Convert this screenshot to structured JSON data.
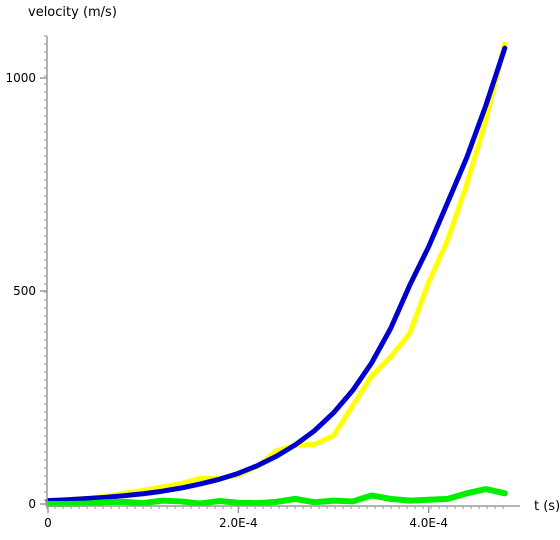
{
  "chart_data": {
    "type": "line",
    "title": "",
    "xlabel": "t (s)",
    "ylabel": "velocity (m/s)",
    "xlim": [
      0,
      0.00048
    ],
    "ylim": [
      0,
      1000
    ],
    "x_ticks": [
      0,
      0.0002,
      0.0004
    ],
    "x_tick_labels": [
      "0",
      "2.0E-4",
      "4.0E-4"
    ],
    "y_ticks": [
      0,
      500,
      1000
    ],
    "y_tick_labels": [
      "0",
      "500",
      "1000"
    ],
    "grid": false,
    "series": [
      {
        "color": "#ffff00",
        "x": [
          0,
          2e-05,
          4e-05,
          6e-05,
          8e-05,
          0.0001,
          0.00012,
          0.00014,
          0.00016,
          0.00018,
          0.0002,
          0.00022,
          0.00024,
          0.00026,
          0.00028,
          0.0003,
          0.00032,
          0.00034,
          0.00036,
          0.00038,
          0.0004,
          0.00042,
          0.00044,
          0.00046,
          0.00048
        ],
        "values": [
          8,
          10,
          13,
          18,
          25,
          32,
          40,
          48,
          60,
          60,
          68,
          88,
          125,
          138,
          140,
          160,
          230,
          300,
          345,
          400,
          520,
          620,
          750,
          900,
          1080
        ]
      },
      {
        "color": "#0000cc",
        "x": [
          0,
          2e-05,
          4e-05,
          6e-05,
          8e-05,
          0.0001,
          0.00012,
          0.00014,
          0.00016,
          0.00018,
          0.0002,
          0.00022,
          0.00024,
          0.00026,
          0.00028,
          0.0003,
          0.00032,
          0.00034,
          0.00036,
          0.00038,
          0.0004,
          0.00042,
          0.00044,
          0.00046,
          0.00048
        ],
        "values": [
          8,
          10,
          12.5,
          15.5,
          19.5,
          24,
          30,
          37.5,
          47,
          58,
          72,
          90,
          112,
          139,
          172,
          214,
          266,
          331,
          412,
          513,
          604,
          708,
          813,
          935,
          1070
        ]
      },
      {
        "color": "#00ee00",
        "x": [
          0,
          2e-05,
          4e-05,
          6e-05,
          8e-05,
          0.0001,
          0.00012,
          0.00014,
          0.00016,
          0.00018,
          0.0002,
          0.00022,
          0.00024,
          0.00026,
          0.00028,
          0.0003,
          0.00032,
          0.00034,
          0.00036,
          0.00038,
          0.0004,
          0.00042,
          0.00044,
          0.00046,
          0.00048
        ],
        "values": [
          0,
          0,
          1,
          4,
          5,
          2,
          8,
          6,
          1,
          7,
          3,
          2,
          5,
          12,
          4,
          8,
          6,
          20,
          12,
          8,
          10,
          12,
          25,
          35,
          25
        ]
      }
    ]
  }
}
